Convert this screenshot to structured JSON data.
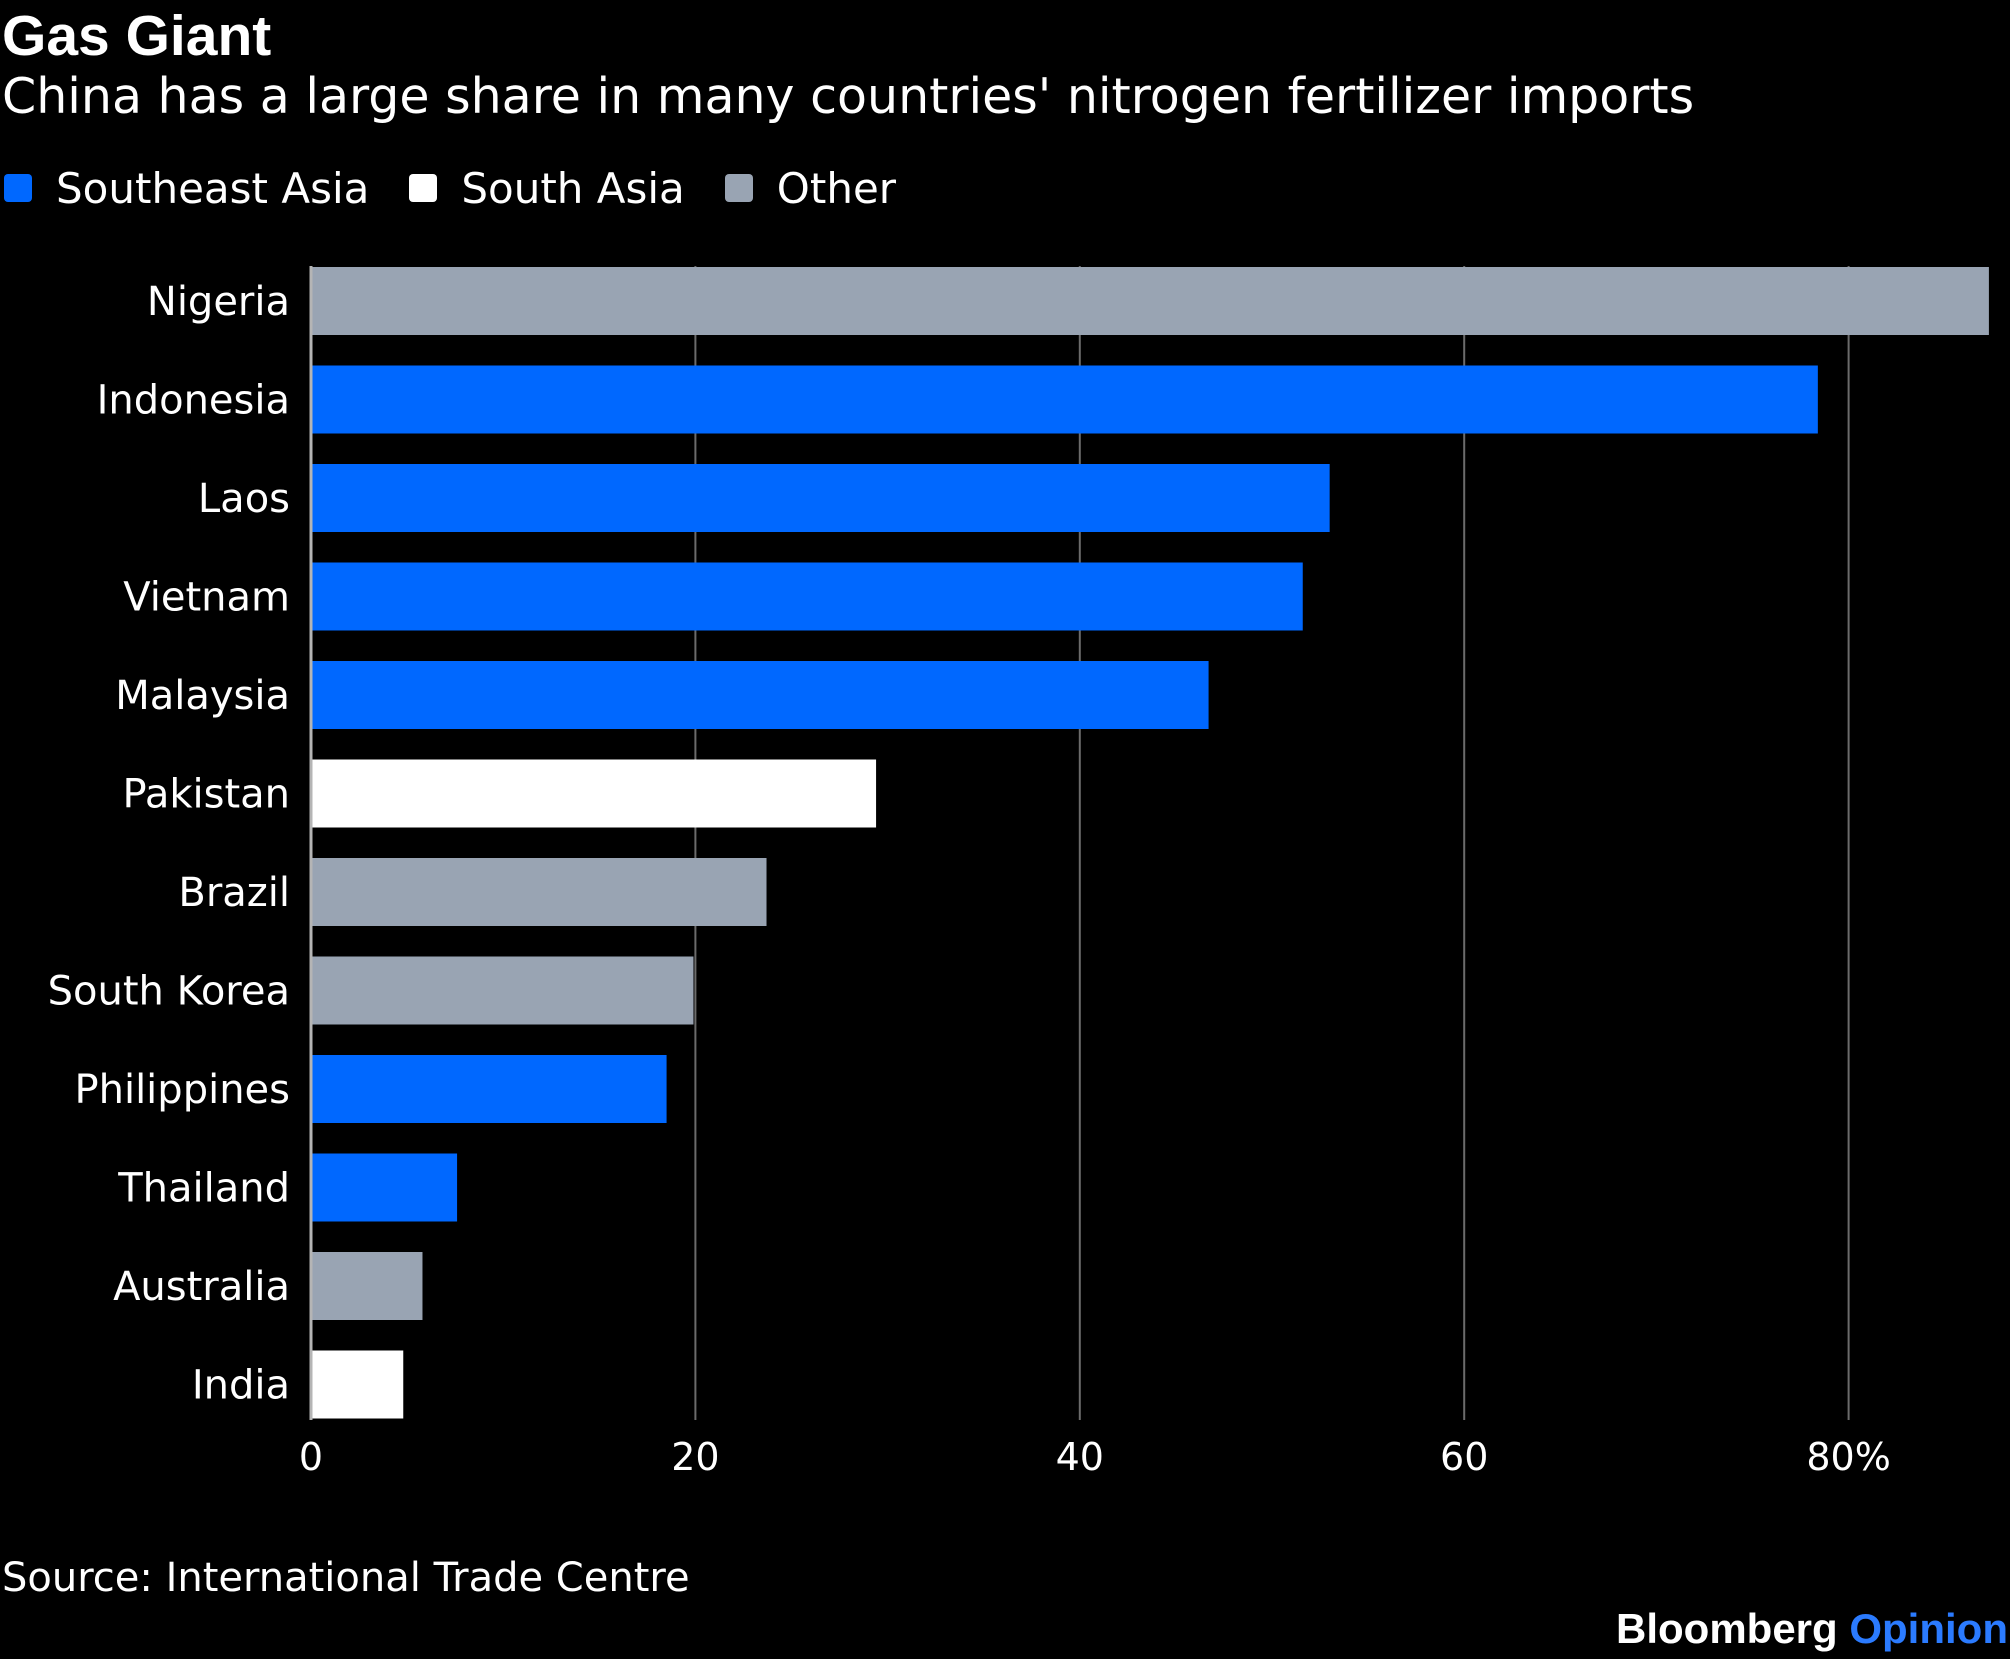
{
  "header": {
    "title": "Gas Giant",
    "subtitle": "China has a large share in many countries' nitrogen fertilizer imports"
  },
  "legend": [
    {
      "label": "Southeast Asia",
      "color": "#0068ff"
    },
    {
      "label": "South Asia",
      "color": "#ffffff"
    },
    {
      "label": "Other",
      "color": "#99a4b3"
    }
  ],
  "footer": {
    "source": "Source: International Trade Centre",
    "brand_main": "Bloomberg",
    "brand_accent": "Opinion",
    "brand_accent_color": "#2b7bff"
  },
  "chart_data": {
    "type": "bar",
    "orientation": "horizontal",
    "title": "Gas Giant",
    "subtitle": "China has a large share in many countries' nitrogen fertilizer imports",
    "xlabel": "",
    "ylabel": "",
    "xlim": [
      0,
      87.3
    ],
    "grid": true,
    "legend_position": "top-left",
    "ticks": [
      {
        "value": 0,
        "label": "0"
      },
      {
        "value": 20,
        "label": "20"
      },
      {
        "value": 40,
        "label": "40"
      },
      {
        "value": 60,
        "label": "60"
      },
      {
        "value": 80,
        "label": "80%"
      }
    ],
    "categories": [
      "Nigeria",
      "Indonesia",
      "Laos",
      "Vietnam",
      "Malaysia",
      "Pakistan",
      "Brazil",
      "South Korea",
      "Philippines",
      "Thailand",
      "Australia",
      "India"
    ],
    "values": [
      87.3,
      78.4,
      53.0,
      51.6,
      46.7,
      29.4,
      23.7,
      19.9,
      18.5,
      7.6,
      5.8,
      4.8
    ],
    "groups": [
      "Other",
      "Southeast Asia",
      "Southeast Asia",
      "Southeast Asia",
      "Southeast Asia",
      "South Asia",
      "Other",
      "Other",
      "Southeast Asia",
      "Southeast Asia",
      "Other",
      "South Asia"
    ],
    "colors": {
      "Southeast Asia": "#0068ff",
      "South Asia": "#ffffff",
      "Other": "#99a4b3"
    }
  }
}
